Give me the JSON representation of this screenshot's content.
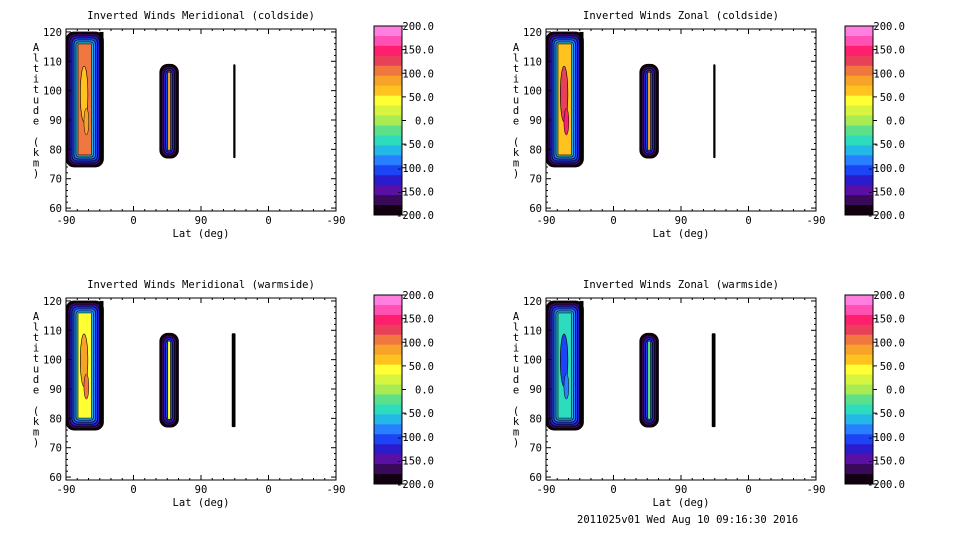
{
  "footer": "2011025v01 Wed Aug 10 09:16:30 2016",
  "colorbar": {
    "ticks": [
      "200.0",
      "150.0",
      "100.0",
      "50.0",
      "0.0",
      "-50.0",
      "-100.0",
      "-150.0",
      "-200.0"
    ],
    "colors": [
      "#ff7fe0",
      "#ff50b4",
      "#ff1f6e",
      "#e8405a",
      "#f07840",
      "#f7a32a",
      "#ffc21e",
      "#ffff33",
      "#d7f53e",
      "#a9eb52",
      "#5ee08a",
      "#2ddcbc",
      "#24b8e6",
      "#2680ff",
      "#1c44f5",
      "#2a1ccc",
      "#5a10a4",
      "#3a0a5a",
      "#120010"
    ]
  },
  "chart_data": [
    {
      "type": "heatmap",
      "title": "Inverted Winds Meridional (coldside)",
      "xlabel": "Lat (deg)",
      "ylabel": "Altitude (km)",
      "x_ticks": [
        "-90",
        "0",
        "90",
        "0",
        "-90"
      ],
      "y_ticks": [
        60,
        70,
        80,
        90,
        100,
        110,
        120
      ],
      "ylim": [
        59,
        121
      ],
      "blobs": [
        {
          "lat_axis": [
            -90,
            -40
          ],
          "alt": [
            74,
            120
          ],
          "level": 4,
          "core_level": 6,
          "wall": "right"
        },
        {
          "lat_axis": [
            35,
            60
          ],
          "alt": [
            77,
            109
          ],
          "level": 5,
          "core_level": 4
        },
        {
          "lat_axis": [
            133,
            136
          ],
          "alt": [
            77,
            109
          ],
          "level": 18
        }
      ]
    },
    {
      "type": "heatmap",
      "title": "Inverted Winds Zonal (coldside)",
      "xlabel": "Lat (deg)",
      "ylabel": "Altitude (km)",
      "x_ticks": [
        "-90",
        "0",
        "90",
        "0",
        "-90"
      ],
      "y_ticks": [
        60,
        70,
        80,
        90,
        100,
        110,
        120
      ],
      "ylim": [
        59,
        121
      ],
      "blobs": [
        {
          "lat_axis": [
            -90,
            -40
          ],
          "alt": [
            74,
            120
          ],
          "level": 6,
          "core_level": 3,
          "wall": "right"
        },
        {
          "lat_axis": [
            35,
            60
          ],
          "alt": [
            77,
            109
          ],
          "level": 5,
          "core_level": 4
        },
        {
          "lat_axis": [
            133,
            136
          ],
          "alt": [
            77,
            109
          ],
          "level": 18
        }
      ]
    },
    {
      "type": "heatmap",
      "title": "Inverted Winds Meridional (warmside)",
      "xlabel": "Lat (deg)",
      "ylabel": "Altitude (km)",
      "x_ticks": [
        "-90",
        "0",
        "90",
        "0",
        "-90"
      ],
      "y_ticks": [
        60,
        70,
        80,
        90,
        100,
        110,
        120
      ],
      "ylim": [
        59,
        121
      ],
      "blobs": [
        {
          "lat_axis": [
            -90,
            -40
          ],
          "alt": [
            76,
            120
          ],
          "level": 7,
          "core_level": 5,
          "wall": "right"
        },
        {
          "lat_axis": [
            35,
            60
          ],
          "alt": [
            77,
            109
          ],
          "level": 7,
          "core_level": 6
        },
        {
          "lat_axis": [
            131,
            136
          ],
          "alt": [
            77,
            109
          ],
          "level": 9
        }
      ]
    },
    {
      "type": "heatmap",
      "title": "Inverted Winds Zonal (warmside)",
      "xlabel": "Lat (deg)",
      "ylabel": "Altitude (km)",
      "x_ticks": [
        "-90",
        "0",
        "90",
        "0",
        "-90"
      ],
      "y_ticks": [
        60,
        70,
        80,
        90,
        100,
        110,
        120
      ],
      "ylim": [
        59,
        121
      ],
      "blobs": [
        {
          "lat_axis": [
            -90,
            -40
          ],
          "alt": [
            76,
            120
          ],
          "level": 11,
          "core_level": 14,
          "wall": "right"
        },
        {
          "lat_axis": [
            35,
            60
          ],
          "alt": [
            77,
            109
          ],
          "level": 10,
          "core_level": 8
        },
        {
          "lat_axis": [
            131,
            136
          ],
          "alt": [
            77,
            109
          ],
          "level": 11
        }
      ]
    }
  ]
}
